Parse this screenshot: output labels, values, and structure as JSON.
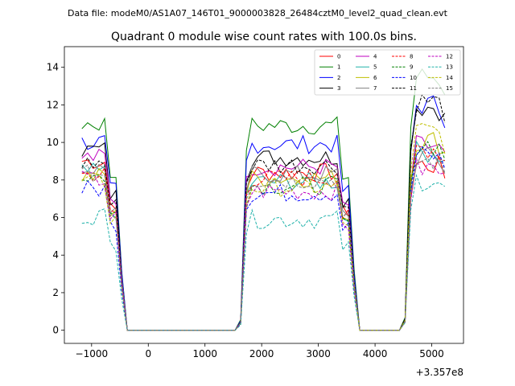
{
  "chart_data": {
    "type": "line",
    "suptitle": "Data file: modeM0/AS1A07_146T01_9000003828_26484cztM0_level2_quad_clean.evt",
    "title": "Quadrant 0 module wise count rates with 100.0s bins.",
    "xlabel": "",
    "ylabel": "",
    "x_offset_label": "+3.357e8",
    "xlim": [
      -1480,
      5560
    ],
    "ylim": [
      -0.7,
      15.1
    ],
    "xticks": [
      -1000,
      0,
      1000,
      2000,
      3000,
      4000,
      5000
    ],
    "xtick_labels": [
      "−1000",
      "0",
      "1000",
      "2000",
      "3000",
      "4000",
      "5000"
    ],
    "yticks": [
      0,
      2,
      4,
      6,
      8,
      10,
      12,
      14
    ],
    "ytick_labels": [
      "0",
      "2",
      "4",
      "6",
      "8",
      "10",
      "12",
      "14"
    ],
    "legend_location": "top-right",
    "legend_columns": 4,
    "segments": [
      {
        "start": -1170,
        "end": -470
      },
      {
        "start": 1630,
        "end": 3630
      },
      {
        "start": 4430,
        "end": 5270
      }
    ],
    "series": [
      {
        "name": "0",
        "color": "#ff0000",
        "dashed": false,
        "level": [
          9.0,
          8.4,
          8.8
        ]
      },
      {
        "name": "1",
        "color": "#008000",
        "dashed": false,
        "level": [
          11.0,
          10.9,
          13.5
        ]
      },
      {
        "name": "2",
        "color": "#0000ff",
        "dashed": false,
        "level": [
          10.0,
          9.9,
          12.0
        ]
      },
      {
        "name": "3",
        "color": "#000000",
        "dashed": false,
        "level": [
          9.6,
          9.2,
          11.9
        ]
      },
      {
        "name": "4",
        "color": "#bf00bf",
        "dashed": false,
        "level": [
          9.2,
          8.7,
          9.8
        ]
      },
      {
        "name": "5",
        "color": "#20b2aa",
        "dashed": false,
        "level": [
          8.4,
          7.9,
          9.5
        ]
      },
      {
        "name": "6",
        "color": "#bfbf00",
        "dashed": false,
        "level": [
          8.2,
          8.1,
          10.1
        ]
      },
      {
        "name": "7",
        "color": "#808080",
        "dashed": false,
        "level": [
          8.6,
          8.3,
          9.2
        ]
      },
      {
        "name": "8",
        "color": "#ff0000",
        "dashed": true,
        "level": [
          8.3,
          8.1,
          9.7
        ]
      },
      {
        "name": "9",
        "color": "#008000",
        "dashed": true,
        "level": [
          8.2,
          7.7,
          9.9
        ]
      },
      {
        "name": "10",
        "color": "#0000ff",
        "dashed": true,
        "level": [
          7.5,
          7.3,
          9.3
        ]
      },
      {
        "name": "11",
        "color": "#000000",
        "dashed": true,
        "level": [
          8.9,
          8.8,
          12.2
        ]
      },
      {
        "name": "12",
        "color": "#bf00bf",
        "dashed": true,
        "level": [
          8.0,
          7.4,
          8.6
        ]
      },
      {
        "name": "13",
        "color": "#20b2aa",
        "dashed": true,
        "level": [
          6.1,
          5.9,
          8.0
        ]
      },
      {
        "name": "14",
        "color": "#bfbf00",
        "dashed": true,
        "level": [
          7.9,
          7.6,
          10.6
        ]
      },
      {
        "name": "15",
        "color": "#808080",
        "dashed": true,
        "level": [
          8.3,
          8.0,
          9.0
        ]
      }
    ]
  }
}
